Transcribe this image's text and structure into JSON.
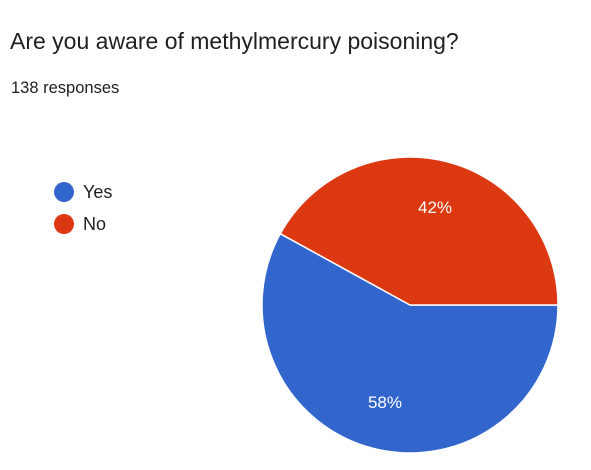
{
  "question": {
    "title": "Are you aware of methylmercury poisoning?",
    "responses": "138 responses"
  },
  "chart_data": {
    "type": "pie",
    "categories": [
      "Yes",
      "No"
    ],
    "values": [
      58,
      42
    ],
    "labels": [
      "58%",
      "42%"
    ],
    "colors": [
      "#3366cc",
      "#dc3912"
    ],
    "legend_position": "left"
  }
}
